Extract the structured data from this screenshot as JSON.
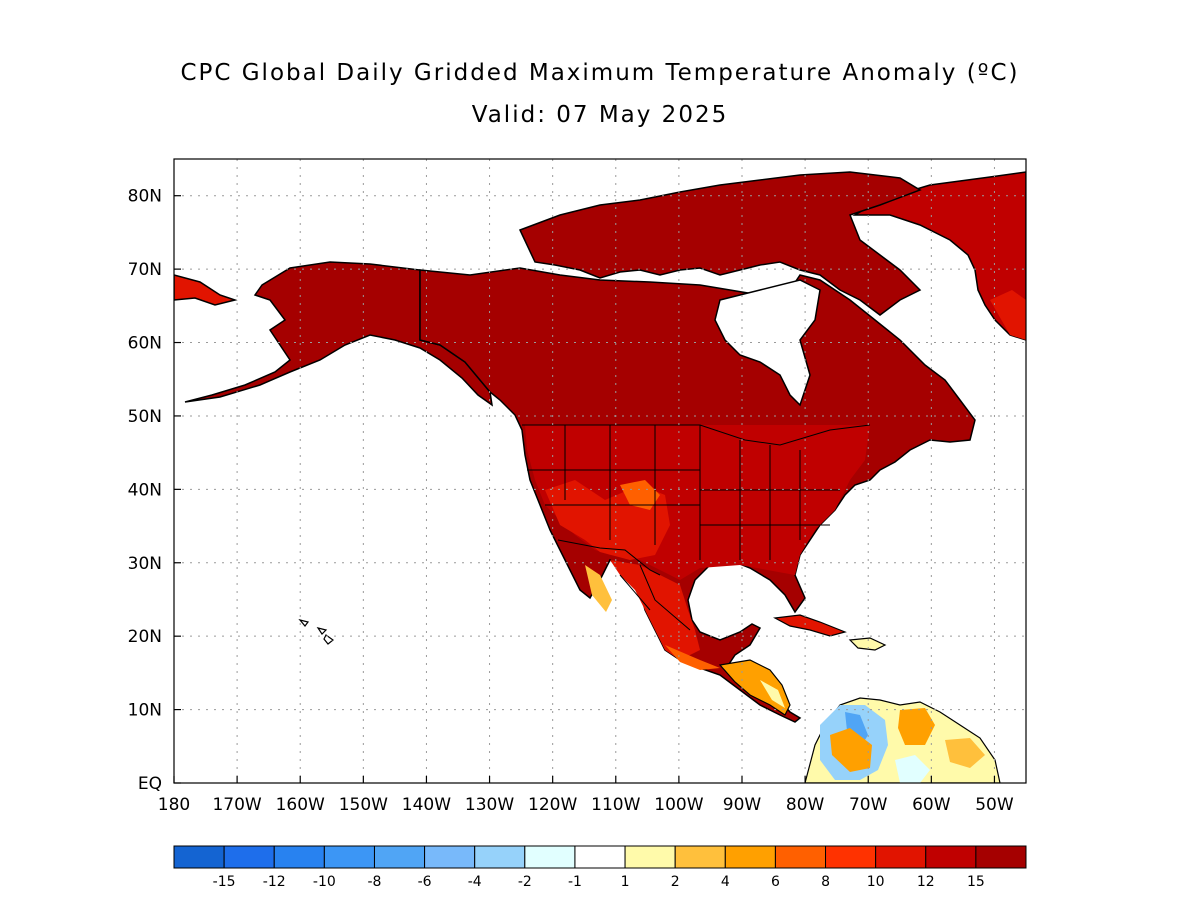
{
  "title": "CPC Global Daily Gridded Maximum Temperature Anomaly (ºC)",
  "subtitle": "Valid: 07 May 2025",
  "map": {
    "lon_range": [
      -180,
      -45
    ],
    "lat_range": [
      0,
      85
    ],
    "grid": true,
    "lat_ticks": [
      {
        "value": 80,
        "label": "80N"
      },
      {
        "value": 70,
        "label": "70N"
      },
      {
        "value": 60,
        "label": "60N"
      },
      {
        "value": 50,
        "label": "50N"
      },
      {
        "value": 40,
        "label": "40N"
      },
      {
        "value": 30,
        "label": "30N"
      },
      {
        "value": 20,
        "label": "20N"
      },
      {
        "value": 10,
        "label": "10N"
      },
      {
        "value": 0,
        "label": "EQ"
      }
    ],
    "lon_ticks": [
      {
        "value": -180,
        "label": "180"
      },
      {
        "value": -170,
        "label": "170W"
      },
      {
        "value": -160,
        "label": "160W"
      },
      {
        "value": -150,
        "label": "150W"
      },
      {
        "value": -140,
        "label": "140W"
      },
      {
        "value": -130,
        "label": "130W"
      },
      {
        "value": -120,
        "label": "120W"
      },
      {
        "value": -110,
        "label": "110W"
      },
      {
        "value": -100,
        "label": "100W"
      },
      {
        "value": -90,
        "label": "90W"
      },
      {
        "value": -80,
        "label": "80W"
      },
      {
        "value": -70,
        "label": "70W"
      },
      {
        "value": -60,
        "label": "60W"
      },
      {
        "value": -50,
        "label": "50W"
      }
    ]
  },
  "colorbar": {
    "colors": [
      "#1464d2",
      "#1e6eeb",
      "#2882f0",
      "#3c96f5",
      "#50a5f5",
      "#78b9fa",
      "#96d2fa",
      "#e1ffff",
      "#ffffff",
      "#fffaaa",
      "#ffc03c",
      "#ffa000",
      "#ff6000",
      "#ff3200",
      "#e11400",
      "#c00000",
      "#a50000"
    ],
    "labels": [
      "-15",
      "-12",
      "-10",
      "-8",
      "-6",
      "-4",
      "-2",
      "-1",
      "1",
      "2",
      "4",
      "6",
      "8",
      "10",
      "12",
      "15"
    ]
  },
  "regions": [
    {
      "name": "Greenland",
      "color": "#c00000"
    },
    {
      "name": "Canada and Alaska",
      "color": "#a50000"
    },
    {
      "name": "United States",
      "color": "#c00000"
    },
    {
      "name": "Mexico",
      "color": "#e11400"
    },
    {
      "name": "Central America",
      "color": "#ffa000"
    },
    {
      "name": "Northern South America",
      "color": "#96d2fa"
    }
  ]
}
